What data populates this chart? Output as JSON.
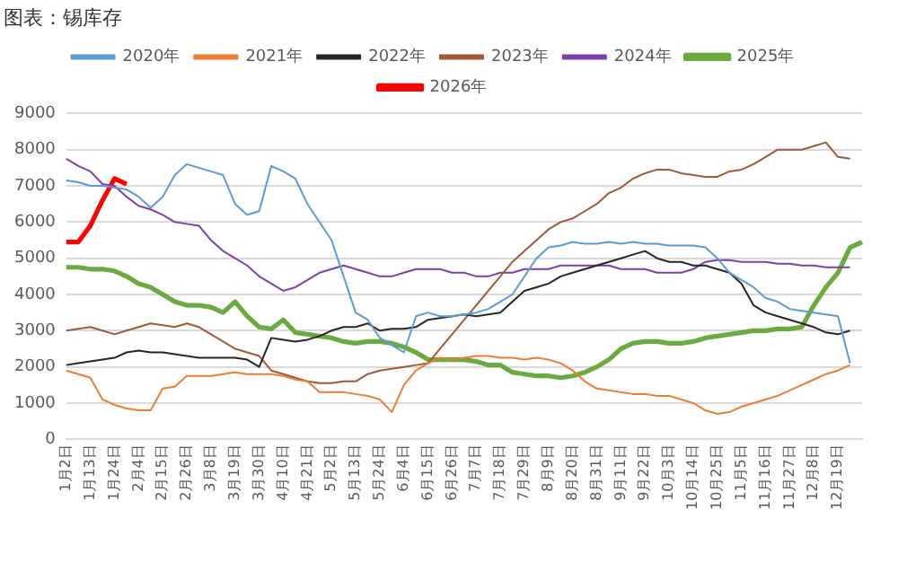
{
  "chart_data": {
    "type": "line",
    "title": "图表：锡库存",
    "categories": [
      "1月2日",
      null,
      "1月13日",
      null,
      "1月24日",
      null,
      "2月4日",
      null,
      "2月15日",
      null,
      "2月26日",
      null,
      "3月8日",
      null,
      "3月19日",
      null,
      "3月30日",
      null,
      "4月10日",
      null,
      "4月21日",
      null,
      "5月2日",
      null,
      "5月13日",
      null,
      "5月24日",
      null,
      "6月4日",
      null,
      "6月15日",
      null,
      "6月26日",
      null,
      "7月7日",
      null,
      "7月18日",
      null,
      "7月29日",
      null,
      "8月9日",
      null,
      "8月20日",
      null,
      "8月31日",
      null,
      "9月11日",
      null,
      "9月22日",
      null,
      "10月3日",
      null,
      "10月14日",
      null,
      "10月25日",
      null,
      "11月5日",
      null,
      "11月16日",
      null,
      "11月27日",
      null,
      "12月8日",
      null,
      "12月19日",
      null,
      null
    ],
    "series": [
      {
        "name": "2020年",
        "color": "#5b9bd5",
        "values": [
          7150,
          7100,
          7000,
          7000,
          6950,
          6900,
          6700,
          6400,
          6700,
          7300,
          7600,
          7500,
          7400,
          7300,
          6500,
          6200,
          6300,
          7550,
          7400,
          7200,
          6500,
          6000,
          5500,
          4500,
          3500,
          3300,
          2800,
          2600,
          2400,
          3400,
          3500,
          3400,
          3400,
          3450,
          3500,
          3600,
          3800,
          4000,
          4500,
          5000,
          5300,
          5350,
          5450,
          5400,
          5400,
          5450,
          5400,
          5450,
          5400,
          5400,
          5350,
          5350,
          5350,
          5300,
          5000,
          4600,
          4400,
          4200,
          3900,
          3800,
          3600,
          3550,
          3500,
          3450,
          3400,
          2100,
          null
        ]
      },
      {
        "name": "2021年",
        "color": "#ed7d31",
        "values": [
          1900,
          1800,
          1700,
          1100,
          950,
          850,
          800,
          800,
          1400,
          1450,
          1750,
          1750,
          1750,
          1800,
          1850,
          1800,
          1800,
          1800,
          1750,
          1650,
          1600,
          1300,
          1300,
          1300,
          1250,
          1200,
          1100,
          750,
          1500,
          1900,
          2100,
          2250,
          2200,
          2250,
          2300,
          2300,
          2250,
          2250,
          2200,
          2250,
          2200,
          2100,
          1900,
          1600,
          1400,
          1350,
          1300,
          1250,
          1250,
          1200,
          1200,
          1100,
          1000,
          800,
          700,
          750,
          900,
          1000,
          1100,
          1200,
          1350,
          1500,
          1650,
          1800,
          1900,
          2050,
          null
        ]
      },
      {
        "name": "2022年",
        "color": "#262626",
        "values": [
          2050,
          2100,
          2150,
          2200,
          2250,
          2400,
          2450,
          2400,
          2400,
          2350,
          2300,
          2250,
          2250,
          2250,
          2250,
          2200,
          2000,
          2800,
          2750,
          2700,
          2750,
          2850,
          3000,
          3100,
          3100,
          3200,
          3000,
          3050,
          3050,
          3100,
          3300,
          3350,
          3400,
          3450,
          3400,
          3450,
          3500,
          3800,
          4100,
          4200,
          4300,
          4500,
          4600,
          4700,
          4800,
          4900,
          5000,
          5100,
          5200,
          5000,
          4900,
          4900,
          4800,
          4800,
          4700,
          4600,
          4300,
          3700,
          3500,
          3400,
          3300,
          3200,
          3100,
          2950,
          2900,
          3000,
          null
        ]
      },
      {
        "name": "2023年",
        "color": "#9e5a35",
        "values": [
          3000,
          3050,
          3100,
          3000,
          2900,
          3000,
          3100,
          3200,
          3150,
          3100,
          3200,
          3100,
          2900,
          2700,
          2500,
          2400,
          2300,
          1900,
          1800,
          1700,
          1600,
          1550,
          1550,
          1600,
          1600,
          1800,
          1900,
          1950,
          2000,
          2050,
          2100,
          2500,
          2900,
          3300,
          3700,
          4100,
          4500,
          4900,
          5200,
          5500,
          5800,
          6000,
          6100,
          6300,
          6500,
          6800,
          6950,
          7200,
          7350,
          7450,
          7450,
          7350,
          7300,
          7250,
          7250,
          7400,
          7450,
          7600,
          7800,
          8000,
          8000,
          8000,
          8100,
          8200,
          7800,
          7750,
          null
        ]
      },
      {
        "name": "2024年",
        "color": "#7e3fa8",
        "values": [
          7750,
          7550,
          7400,
          7050,
          7000,
          6700,
          6450,
          6350,
          6200,
          6000,
          5950,
          5900,
          5500,
          5200,
          5000,
          4800,
          4500,
          4300,
          4100,
          4200,
          4400,
          4600,
          4700,
          4800,
          4700,
          4600,
          4500,
          4500,
          4600,
          4700,
          4700,
          4700,
          4600,
          4600,
          4500,
          4500,
          4600,
          4600,
          4700,
          4700,
          4700,
          4800,
          4800,
          4800,
          4800,
          4800,
          4700,
          4700,
          4700,
          4600,
          4600,
          4600,
          4700,
          4900,
          4950,
          4950,
          4900,
          4900,
          4900,
          4850,
          4850,
          4800,
          4800,
          4750,
          4750,
          4750,
          null
        ]
      },
      {
        "name": "2025年",
        "color": "#6aaa3f",
        "values": [
          4750,
          4750,
          4700,
          4700,
          4650,
          4500,
          4300,
          4200,
          4000,
          3800,
          3700,
          3700,
          3650,
          3500,
          3800,
          3400,
          3100,
          3050,
          3300,
          2950,
          2900,
          2850,
          2800,
          2700,
          2650,
          2700,
          2700,
          2650,
          2550,
          2400,
          2200,
          2200,
          2200,
          2200,
          2150,
          2050,
          2050,
          1850,
          1800,
          1750,
          1750,
          1700,
          1750,
          1850,
          2000,
          2200,
          2500,
          2650,
          2700,
          2700,
          2650,
          2650,
          2700,
          2800,
          2850,
          2900,
          2950,
          3000,
          3000,
          3050,
          3050,
          3100,
          3700,
          4200,
          4600,
          5300,
          5450
        ]
      },
      {
        "name": "2026年",
        "color": "#ff0000",
        "values": [
          5450,
          5450,
          5900,
          6600,
          7200,
          7050,
          null,
          null,
          null,
          null,
          null,
          null,
          null,
          null,
          null,
          null,
          null,
          null,
          null,
          null,
          null,
          null,
          null,
          null,
          null,
          null,
          null,
          null,
          null,
          null,
          null,
          null,
          null,
          null,
          null,
          null,
          null,
          null,
          null,
          null,
          null,
          null,
          null,
          null,
          null,
          null,
          null,
          null,
          null,
          null,
          null,
          null,
          null,
          null,
          null,
          null,
          null,
          null,
          null,
          null,
          null,
          null,
          null,
          null,
          null,
          null,
          null
        ]
      }
    ],
    "ylim": [
      0,
      9000
    ],
    "yticks": [
      0,
      1000,
      2000,
      3000,
      4000,
      5000,
      6000,
      7000,
      8000,
      9000
    ],
    "grid": "y",
    "legend": "top",
    "marker": "none",
    "line_style": "solid"
  }
}
